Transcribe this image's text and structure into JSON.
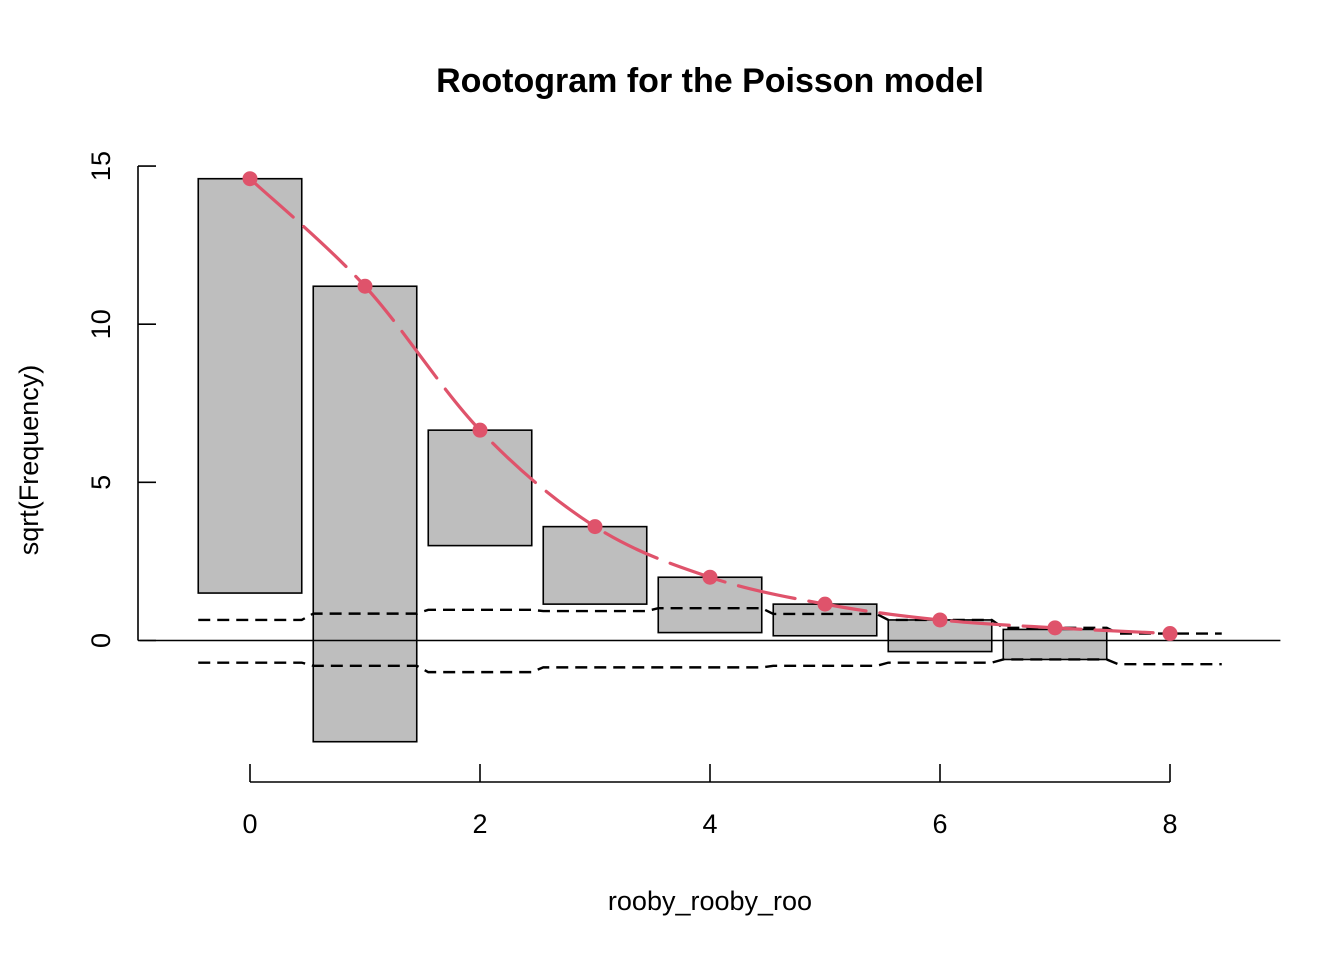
{
  "chart_data": {
    "type": "bar",
    "title": "Rootogram for the Poisson model",
    "xlabel": "rooby_rooby_roo",
    "ylabel": "sqrt(Frequency)",
    "x": [
      0,
      1,
      2,
      3,
      4,
      5,
      6,
      7,
      8
    ],
    "xlim": [
      -1,
      9
    ],
    "ylim": [
      -4,
      15
    ],
    "x_ticks": [
      "0",
      "2",
      "4",
      "6",
      "8"
    ],
    "y_ticks": [
      "0",
      "5",
      "10",
      "15"
    ],
    "grid": false,
    "legend": "none",
    "bar_width": 0.9,
    "series": [
      {
        "kind": "hanging_bars",
        "top": [
          14.6,
          11.2,
          6.65,
          3.6,
          2.0,
          1.15,
          0.65,
          0.35,
          0.2
        ],
        "bottom": [
          1.5,
          -3.2,
          3.0,
          1.15,
          0.25,
          0.15,
          -0.35,
          -0.6,
          0.2
        ]
      },
      {
        "kind": "fitted_line",
        "values": [
          14.6,
          11.2,
          6.65,
          3.6,
          2.0,
          1.15,
          0.65,
          0.4,
          0.22
        ]
      },
      {
        "kind": "upper_reference_band",
        "values": [
          0.65,
          0.85,
          0.97,
          0.93,
          1.02,
          0.84,
          0.65,
          0.4,
          0.22
        ]
      },
      {
        "kind": "lower_reference_band",
        "values": [
          -0.7,
          -0.8,
          -1.0,
          -0.85,
          -0.85,
          -0.8,
          -0.7,
          -0.6,
          -0.75
        ]
      }
    ],
    "colors": {
      "bar_fill": "#BEBEBE",
      "bar_stroke": "#000000",
      "fitted": "#DF536B",
      "reference": "#000000"
    }
  }
}
